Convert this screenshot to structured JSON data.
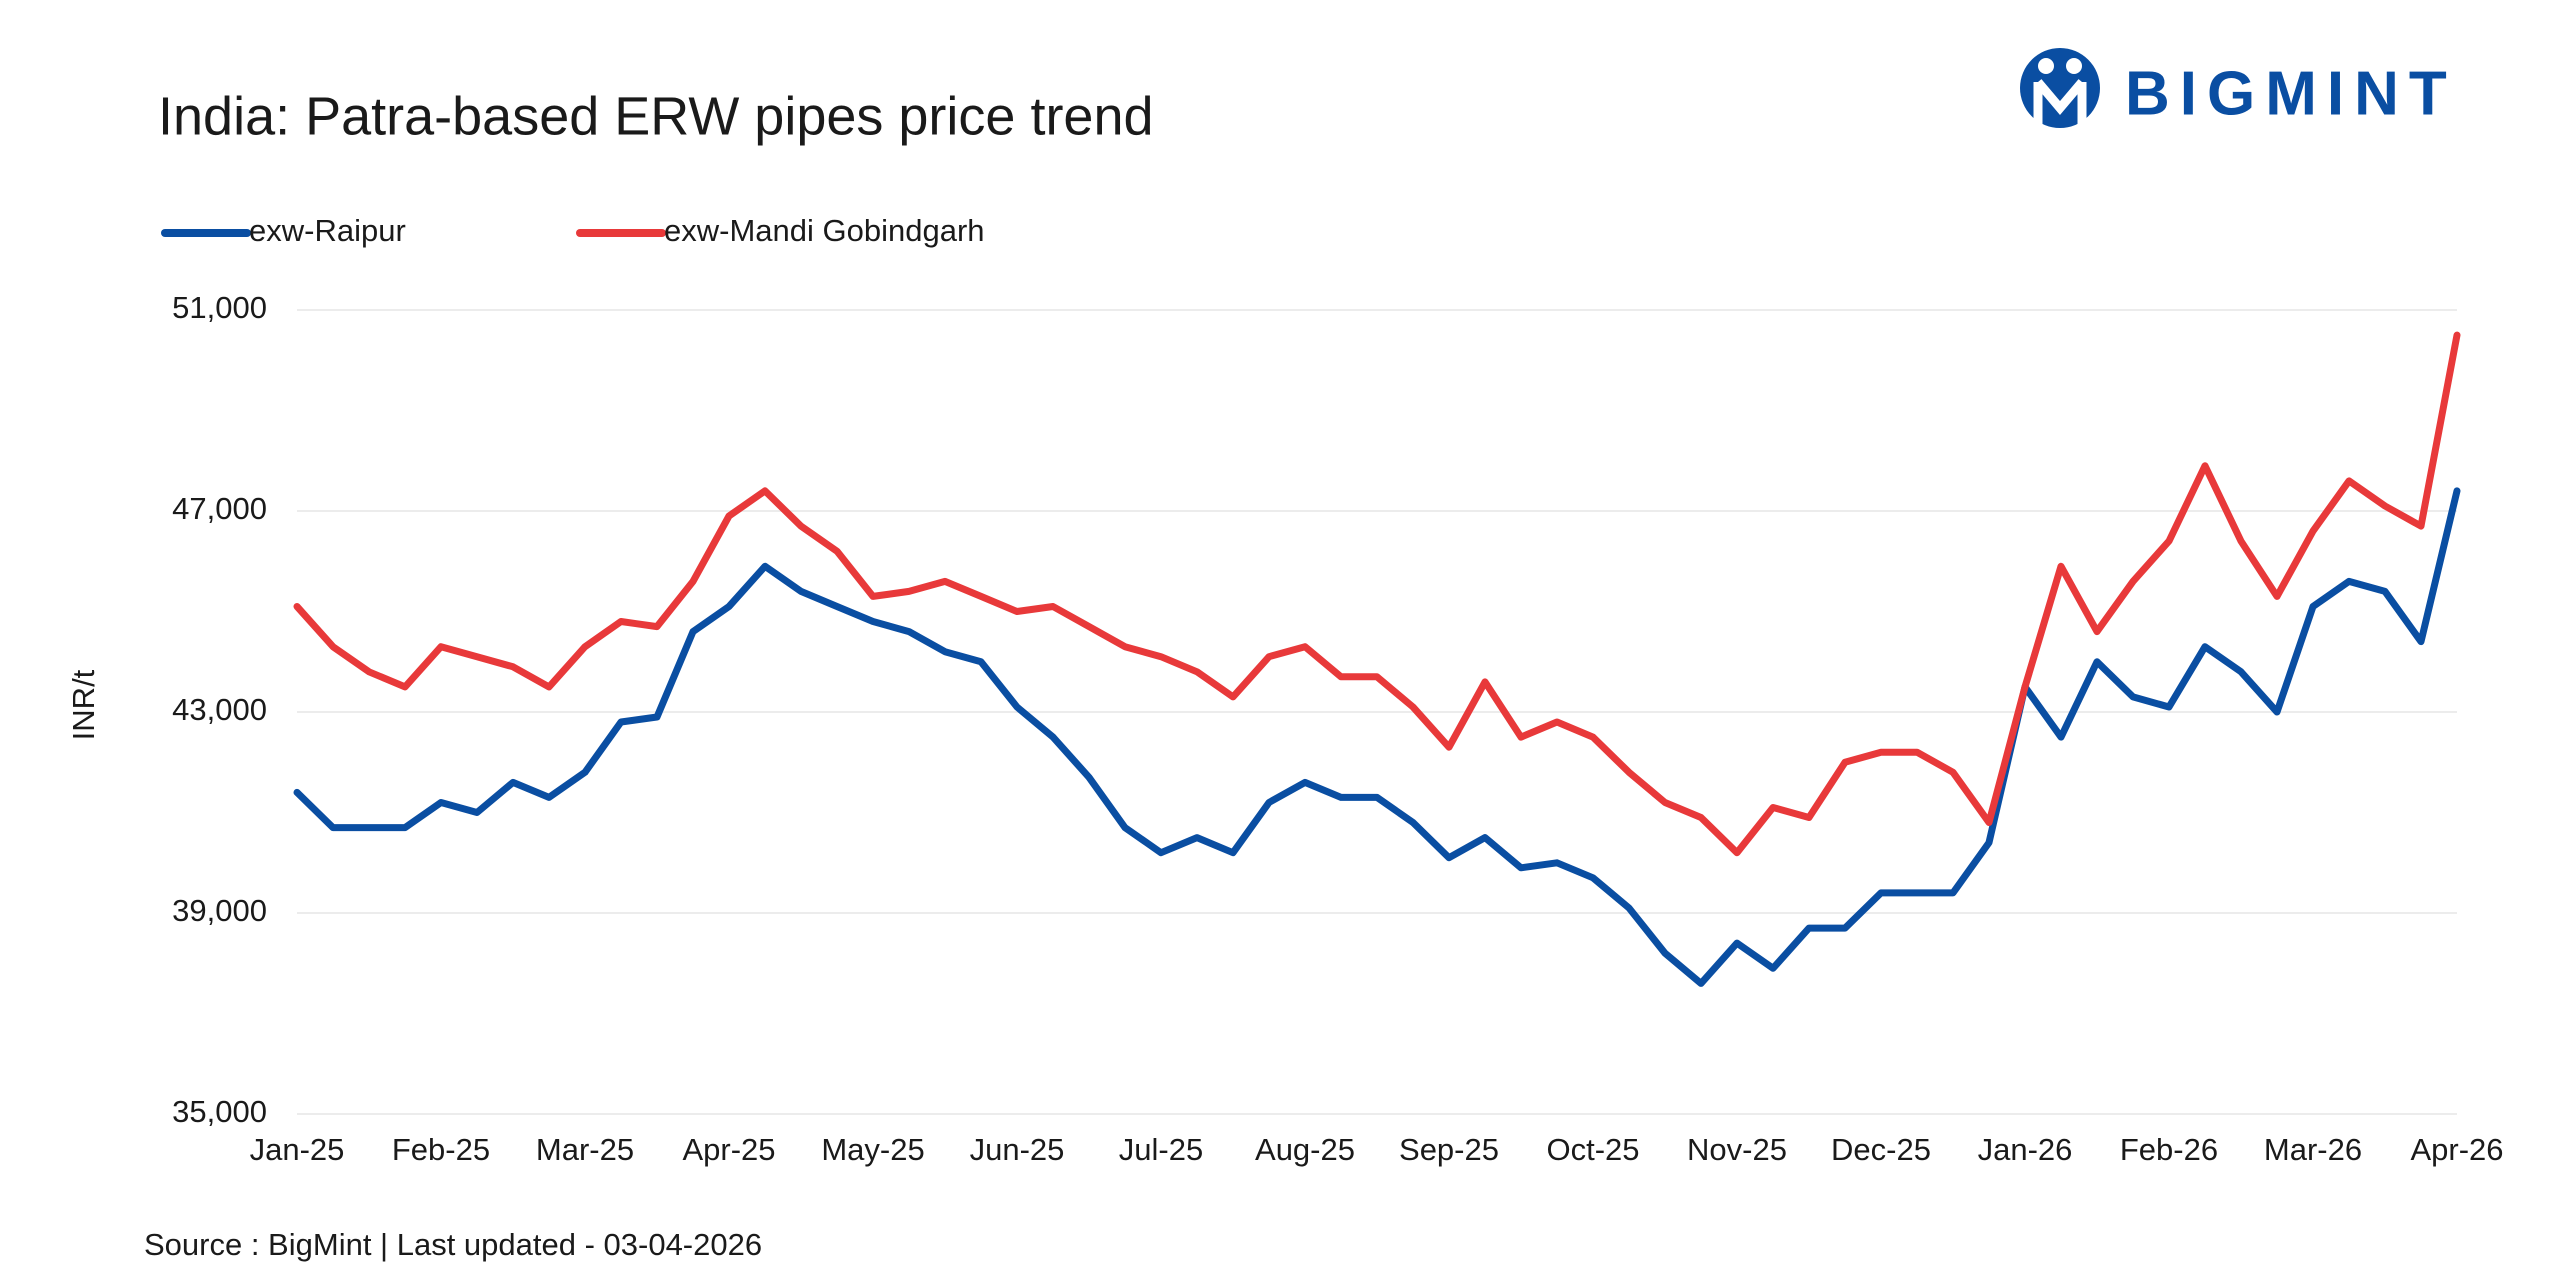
{
  "chart_data": {
    "type": "line",
    "title": "India: Patra-based ERW pipes price trend",
    "logo": "BIGMINT",
    "y_label": "INR/t",
    "source": "Source : BigMint | Last updated - 03-04-2026",
    "categories": [
      "Jan-25",
      null,
      null,
      null,
      "Feb-25",
      null,
      null,
      null,
      "Mar-25",
      null,
      null,
      null,
      "Apr-25",
      null,
      null,
      null,
      "May-25",
      null,
      null,
      null,
      "Jun-25",
      null,
      null,
      null,
      "Jul-25",
      null,
      null,
      null,
      "Aug-25",
      null,
      null,
      null,
      "Sep-25",
      null,
      null,
      null,
      "Oct-25",
      null,
      null,
      null,
      "Nov-25",
      null,
      null,
      null,
      "Dec-25",
      null,
      null,
      null,
      "Jan-26",
      null,
      null,
      null,
      "Feb-26",
      null,
      null,
      null,
      "Mar-26",
      null,
      null,
      null,
      "Apr-26"
    ],
    "series": [
      {
        "name": "exw-Raipur",
        "color": "#0a4ea2",
        "values": [
          41400,
          40700,
          40700,
          40700,
          41200,
          41000,
          41600,
          41300,
          41800,
          42800,
          42900,
          44600,
          45100,
          45900,
          45400,
          45100,
          44800,
          44600,
          44200,
          44000,
          43100,
          42500,
          41700,
          40700,
          40200,
          40500,
          40200,
          41200,
          41600,
          41300,
          41300,
          40800,
          40100,
          40500,
          39900,
          40000,
          39700,
          39100,
          38200,
          37600,
          38400,
          37900,
          38700,
          38700,
          39400,
          39400,
          39400,
          40400,
          43500,
          42500,
          44000,
          43300,
          43100,
          44300,
          43800,
          43000,
          45100,
          45600,
          45400,
          44400,
          47400
        ]
      },
      {
        "name": "exw-Mandi Gobindgarh",
        "color": "#e8393a",
        "values": [
          45100,
          44300,
          43800,
          43500,
          44300,
          44100,
          43900,
          43500,
          44300,
          44800,
          44700,
          45600,
          46900,
          47400,
          46700,
          46200,
          45300,
          45400,
          45600,
          45300,
          45000,
          45100,
          44700,
          44300,
          44100,
          43800,
          43300,
          44100,
          44300,
          43700,
          43700,
          43100,
          42300,
          43600,
          42500,
          42800,
          42500,
          41800,
          41200,
          40900,
          40200,
          41100,
          40900,
          42000,
          42200,
          42200,
          41800,
          40800,
          43500,
          45900,
          44600,
          45600,
          46400,
          47900,
          46400,
          45300,
          46600,
          47600,
          47100,
          46700,
          50500
        ]
      }
    ],
    "ylim": [
      35000,
      51000
    ],
    "yticks": [
      {
        "value": 35000,
        "label": "35,000"
      },
      {
        "value": 39000,
        "label": "39,000"
      },
      {
        "value": 43000,
        "label": "43,000"
      },
      {
        "value": 47000,
        "label": "47,000"
      },
      {
        "value": 51000,
        "label": "51,000"
      }
    ],
    "grid": true
  }
}
